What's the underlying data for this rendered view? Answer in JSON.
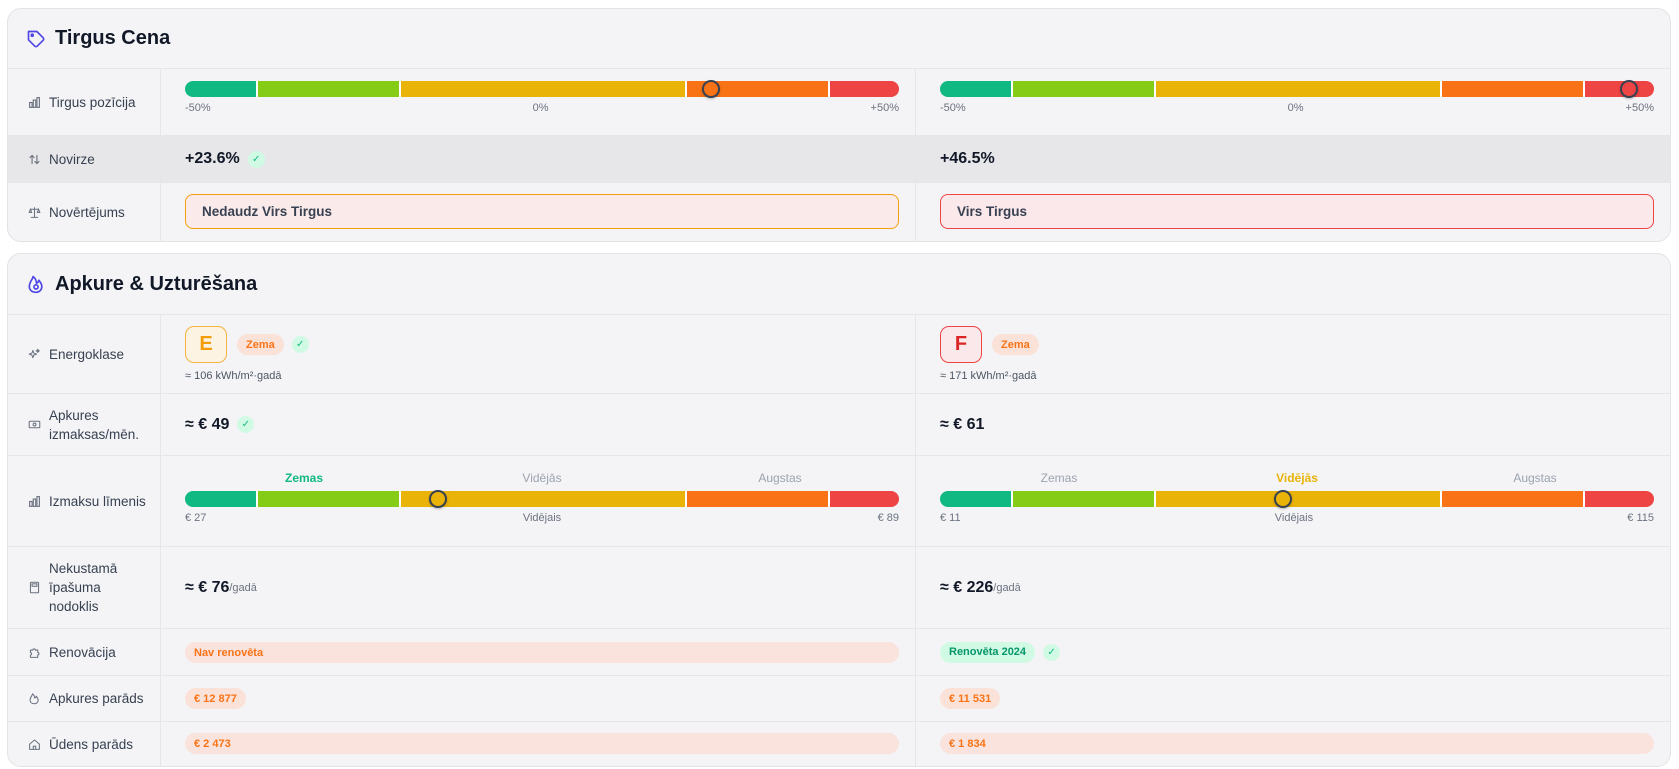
{
  "market": {
    "title": "Tirgus Cena",
    "rows": {
      "position": "Tirgus pozīcija",
      "deviation": "Novirze",
      "assessment": "Novērtējums"
    },
    "scale": {
      "min": "-50%",
      "mid": "0%",
      "max": "+50%"
    },
    "columns": [
      {
        "position_pct": 23.6,
        "deviation": "+23.6%",
        "deviation_check": "✓",
        "assessment": "Nedaudz Virs Tirgus"
      },
      {
        "position_pct": 46.5,
        "deviation": "+46.5%",
        "assessment": "Virs Tirgus"
      }
    ]
  },
  "heating": {
    "title": "Apkure & Uzturēšana",
    "rows": {
      "energy": "Energoklase",
      "heat_cost": "Apkures izmaksas/mēn.",
      "cost_level": "Izmaksu līmenis",
      "property_tax": "Nekustamā īpašuma nodoklis",
      "renovation": "Renovācija",
      "heating_debt": "Apkures parāds",
      "water_debt": "Ūdens parāds"
    },
    "levels": [
      "Zemas",
      "Vidējās",
      "Augstas"
    ],
    "avg_label": "Vidējais",
    "per_year": "/gadā",
    "columns": [
      {
        "energy_class": "E",
        "energy_badge": "Zema",
        "energy_check": "✓",
        "energy_kwh": "≈ 106 kWh/m²·gadā",
        "heat_cost": "≈ € 49",
        "heat_check": "✓",
        "active_level": 0,
        "level_fraction": 0.355,
        "range_min": "€ 27",
        "range_max": "€ 89",
        "tax": "≈ € 76",
        "renovation": "Nav renovēta",
        "heating_debt": "€ 12 877",
        "water_debt": "€ 2 473"
      },
      {
        "energy_class": "F",
        "energy_badge": "Zema",
        "energy_kwh": "≈ 171 kWh/m²·gadā",
        "heat_cost": "≈ € 61",
        "active_level": 1,
        "level_fraction": 0.48,
        "range_min": "€ 11",
        "range_max": "€ 115",
        "tax": "≈ € 226",
        "renovation": "Renovēta 2024",
        "renovation_check": "✓",
        "heating_debt": "€ 11 531",
        "water_debt": "€ 1 834"
      }
    ]
  },
  "colors": {
    "accent": "#4f46e5",
    "green": "#10b981",
    "lime": "#84cc16",
    "yellow": "#eab308",
    "orange": "#f97316",
    "red": "#ef4444"
  }
}
